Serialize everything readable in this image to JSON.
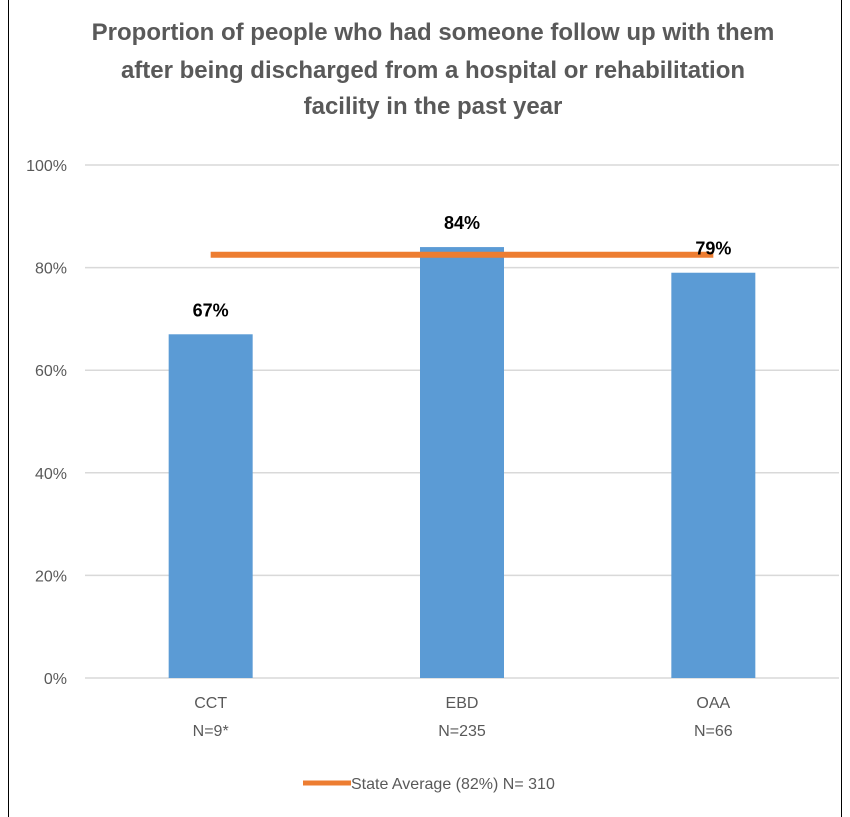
{
  "chart_data": {
    "type": "bar",
    "title_lines": [
      "Proportion of people who had someone follow up with them",
      "after being discharged from a hospital or rehabilitation",
      "facility in the past year"
    ],
    "categories": [
      "CCT",
      "EBD",
      "OAA"
    ],
    "category_sublabels": [
      "N=9*",
      "N=235",
      "N=66"
    ],
    "values": [
      67,
      84,
      79
    ],
    "data_labels": [
      "67%",
      "84%",
      "79%"
    ],
    "ylim": [
      0,
      100
    ],
    "y_ticks": [
      0,
      20,
      40,
      60,
      80,
      100
    ],
    "y_tick_labels": [
      "0%",
      "20%",
      "40%",
      "60%",
      "80%",
      "100%"
    ],
    "grid": true,
    "reference_line": {
      "name": "State Average (82%) N= 310",
      "value": 82.5
    },
    "legend_position": "bottom",
    "colors": {
      "bar": "#5B9BD5",
      "reference": "#ED7D31",
      "grid": "#D9D9D9",
      "text": "#595959"
    }
  }
}
